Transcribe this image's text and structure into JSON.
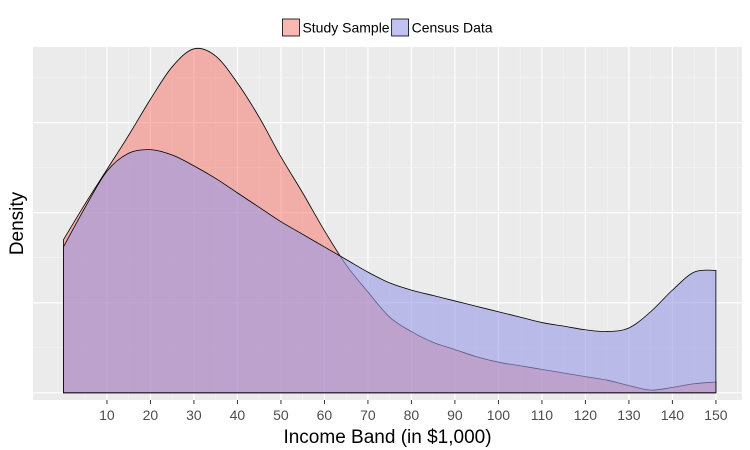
{
  "chart_data": {
    "type": "area",
    "xlabel": "Income Band (in $1,000)",
    "ylabel": "Density",
    "xlim": [
      -7,
      156
    ],
    "ylim": [
      -0.0004,
      0.0192
    ],
    "xticks": [
      10,
      20,
      30,
      40,
      50,
      60,
      70,
      80,
      90,
      100,
      110,
      120,
      130,
      140,
      150
    ],
    "grid": true,
    "legend_position": "top",
    "series": [
      {
        "name": "Study Sample",
        "color": "#f8766d",
        "x": [
          0,
          5,
          10,
          15,
          20,
          25,
          30,
          35,
          40,
          45,
          50,
          55,
          60,
          65,
          70,
          75,
          80,
          85,
          90,
          95,
          100,
          105,
          110,
          115,
          120,
          125,
          130,
          135,
          140,
          145,
          150
        ],
        "values": [
          0.0085,
          0.0105,
          0.0124,
          0.0143,
          0.0163,
          0.0181,
          0.0191,
          0.0187,
          0.0172,
          0.0153,
          0.0131,
          0.0111,
          0.009,
          0.0071,
          0.0056,
          0.0042,
          0.0034,
          0.0028,
          0.0024,
          0.002,
          0.0017,
          0.0015,
          0.0013,
          0.0011,
          0.0009,
          0.0007,
          0.0004,
          0.00015,
          0.0003,
          0.0005,
          0.0006
        ]
      },
      {
        "name": "Census Data",
        "color": "#9999e6",
        "x": [
          0,
          5,
          10,
          15,
          20,
          25,
          30,
          35,
          40,
          45,
          50,
          55,
          60,
          65,
          70,
          75,
          80,
          85,
          90,
          95,
          100,
          105,
          110,
          115,
          120,
          125,
          130,
          135,
          140,
          145,
          150
        ],
        "values": [
          0.0081,
          0.0103,
          0.0123,
          0.0133,
          0.0135,
          0.0132,
          0.0126,
          0.0119,
          0.0111,
          0.0103,
          0.0095,
          0.0088,
          0.0081,
          0.0074,
          0.0067,
          0.0061,
          0.0057,
          0.0054,
          0.0051,
          0.0048,
          0.0045,
          0.0042,
          0.0039,
          0.0037,
          0.0035,
          0.0034,
          0.0036,
          0.0045,
          0.0057,
          0.0067,
          0.0068
        ]
      }
    ]
  }
}
